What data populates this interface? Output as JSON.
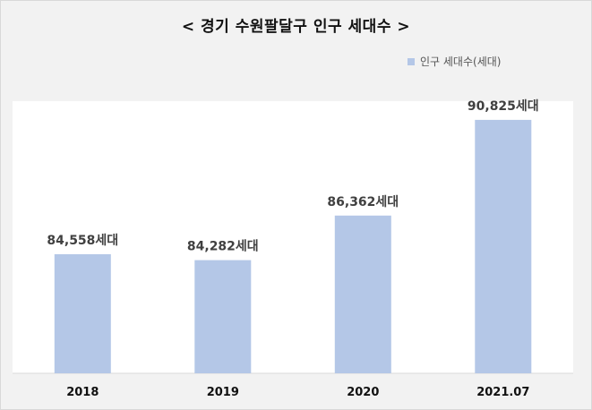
{
  "chart_data": {
    "type": "bar",
    "title": "< 경기 수원팔달구 인구 세대수 >",
    "categories": [
      "2018",
      "2019",
      "2020",
      "2021.07"
    ],
    "series": [
      {
        "name": "인구 세대수(세대)",
        "values": [
          84558,
          84282,
          86362,
          90825
        ],
        "labels": [
          "84,558세대",
          "84,282세대",
          "86,362세대",
          "90,825세대"
        ]
      }
    ],
    "xlabel": "",
    "ylabel": "",
    "ylim": [
      79000,
      91700
    ],
    "grid": false,
    "legend_position": "top-right",
    "bar_color": "#b4c7e7",
    "background_color": "#f2f2f2"
  }
}
